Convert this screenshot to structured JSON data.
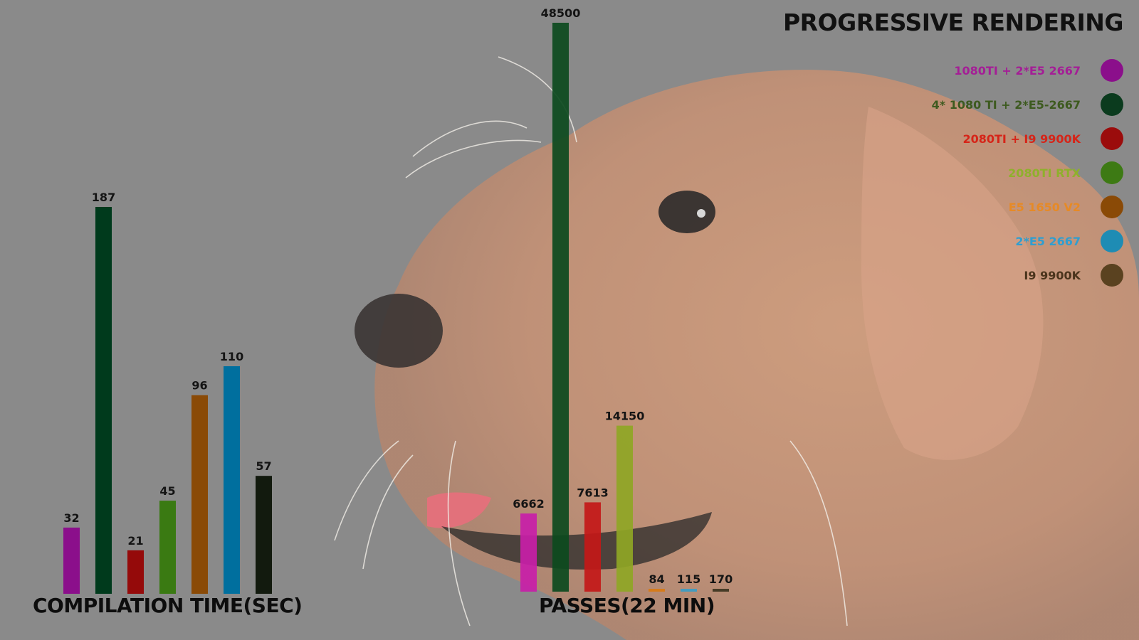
{
  "title": "PROGRESSIVE RENDERING",
  "legend": [
    {
      "label": "1080TI + 2*E5 2667",
      "color": "#8b0f8b",
      "label_color": "#a41e96"
    },
    {
      "label": "4* 1080 TI + 2*E5-2667",
      "color": "#0b3b1e",
      "label_color": "#3d5a1f"
    },
    {
      "label": "2080TI + I9 9900K",
      "color": "#9b0c0c",
      "label_color": "#d62418"
    },
    {
      "label": "2080TI RTX",
      "color": "#3d7a14",
      "label_color": "#8fb02c"
    },
    {
      "label": "E5 1650 V2",
      "color": "#8a4a06",
      "label_color": "#e68a26"
    },
    {
      "label": "2*E5 2667",
      "color": "#1e8cb4",
      "label_color": "#2f9ed0"
    },
    {
      "label": "I9 9900K",
      "color": "#5a4220",
      "label_color": "#4a341c"
    }
  ],
  "chart_data": [
    {
      "type": "bar",
      "title": "COMPILATION TIME(SEC)",
      "categories": [
        "1080TI + 2*E5 2667",
        "4* 1080 TI + 2*E5-2667",
        "2080TI + I9 9900K",
        "2080TI RTX",
        "E5 1650 V2",
        "2*E5 2667",
        "I9 9900K"
      ],
      "values": [
        32,
        187,
        21,
        45,
        96,
        110,
        57
      ],
      "data_labels": [
        "32",
        "187",
        "21",
        "45",
        "96",
        "110",
        "57"
      ],
      "colors": [
        "#8b0f8b",
        "#003a1c",
        "#950a0a",
        "#3a7a12",
        "#8a4a06",
        "#006f9e",
        "#121a0e"
      ]
    },
    {
      "type": "bar",
      "title": "PASSES(22 MIN)",
      "categories": [
        "1080TI + 2*E5 2667",
        "4* 1080 TI + 2*E5-2667",
        "2080TI + I9 9900K",
        "2080TI RTX",
        "E5 1650 V2",
        "2*E5 2667",
        "I9 9900K"
      ],
      "values": [
        6662,
        48500,
        7613,
        14150,
        84,
        115,
        170
      ],
      "data_labels": [
        "6662",
        "48500",
        "7613",
        "14150",
        "84",
        "115",
        "170"
      ],
      "colors": [
        "#c81ea8",
        "#0c4a1e",
        "#c31818",
        "#8fa625",
        "#d87a14",
        "#3a9cc4",
        "#3c3420"
      ]
    }
  ]
}
